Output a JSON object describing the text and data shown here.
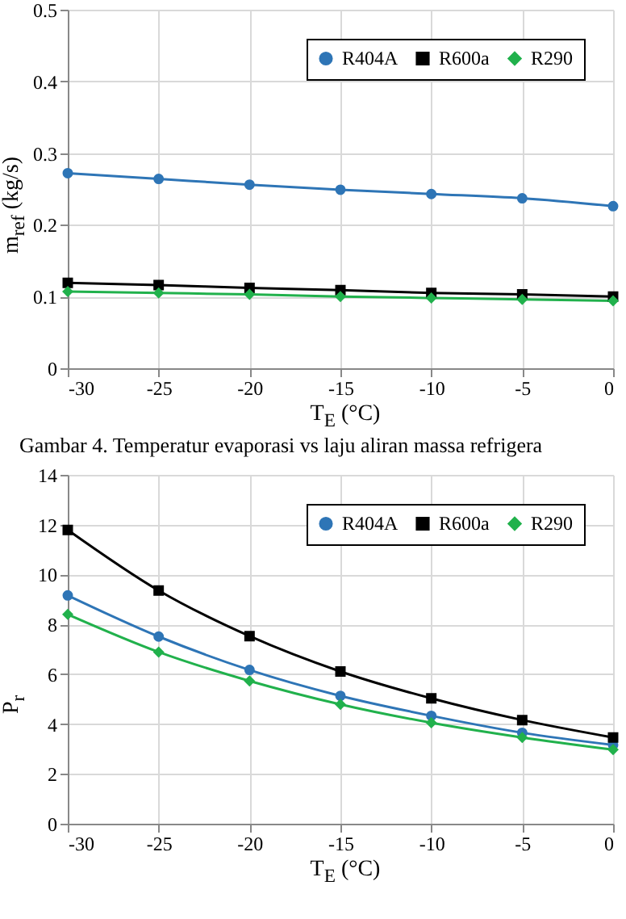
{
  "chart_data": [
    {
      "type": "line",
      "xlabel": "T$_{E}$ (°C)",
      "ylabel": "m$_{ref}$ (kg/s)",
      "x": [
        -30,
        -25,
        -20,
        -15,
        -10,
        -5,
        0
      ],
      "series": [
        {
          "name": "R404A",
          "color": "#2e75b6",
          "marker": "circle",
          "values": [
            0.272,
            0.264,
            0.256,
            0.249,
            0.243,
            0.237,
            0.226
          ]
        },
        {
          "name": "R600a",
          "color": "#000000",
          "marker": "square",
          "values": [
            0.119,
            0.116,
            0.112,
            0.109,
            0.105,
            0.103,
            0.1
          ]
        },
        {
          "name": "R290",
          "color": "#21b14c",
          "marker": "diamond",
          "values": [
            0.107,
            0.105,
            0.103,
            0.1,
            0.098,
            0.096,
            0.094
          ]
        }
      ],
      "xlim": [
        -30,
        0
      ],
      "xticks": [
        -30,
        -25,
        -20,
        -15,
        -10,
        -5,
        0
      ],
      "ylim": [
        0,
        0.5
      ],
      "yticks": [
        0,
        0.1,
        0.2,
        0.3,
        0.4,
        0.5
      ],
      "grid": true,
      "legend": "top right",
      "line_style": "solid",
      "annotations": [
        "Gambar 4. Temperatur evaporasi vs laju aliran massa refrigera"
      ]
    },
    {
      "type": "line",
      "xlabel": "T$_{E}$ (°C)",
      "ylabel": "P$_{r}$",
      "x": [
        -30,
        -25,
        -20,
        -15,
        -10,
        -5,
        0
      ],
      "series": [
        {
          "name": "R404A",
          "color": "#2e75b6",
          "marker": "circle",
          "values": [
            9.16,
            7.51,
            6.17,
            5.13,
            4.33,
            3.65,
            3.16
          ]
        },
        {
          "name": "R600a",
          "color": "#000000",
          "marker": "square",
          "values": [
            11.79,
            9.36,
            7.53,
            6.11,
            5.03,
            4.16,
            3.46
          ]
        },
        {
          "name": "R290",
          "color": "#21b14c",
          "marker": "diamond",
          "values": [
            8.4,
            6.89,
            5.73,
            4.79,
            4.05,
            3.46,
            2.97
          ]
        }
      ],
      "xlim": [
        -30,
        0
      ],
      "xticks": [
        -30,
        -25,
        -20,
        -15,
        -10,
        -5,
        0
      ],
      "ylim": [
        0,
        14
      ],
      "yticks": [
        0,
        2,
        4,
        6,
        8,
        10,
        12,
        14
      ],
      "grid": true,
      "legend": "top right",
      "line_style": "solid"
    }
  ]
}
